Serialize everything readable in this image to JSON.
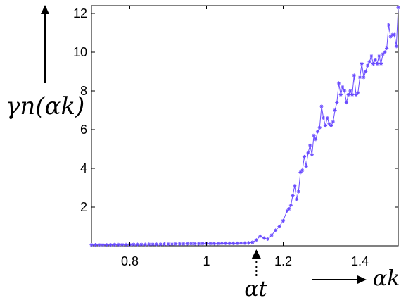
{
  "chart_data": {
    "type": "line",
    "title": "",
    "xlabel": "αk",
    "ylabel": "γn(αk)",
    "xlim": [
      0.7,
      1.5
    ],
    "ylim": [
      0,
      12.4
    ],
    "grid": false,
    "legend": "none",
    "x_ticks": [
      0.8,
      1,
      1.2,
      1.4
    ],
    "x_tick_labels": [
      "0.8",
      "1",
      "1.2",
      "1.4"
    ],
    "y_ticks": [
      2,
      4,
      6,
      8,
      10,
      12
    ],
    "y_tick_labels": [
      "2",
      "4",
      "6",
      "8",
      "10",
      "12"
    ],
    "annotation": {
      "label": "αt",
      "x": 1.13
    },
    "series": [
      {
        "color": "#6a4cff",
        "marker": "star",
        "x": [
          0.7,
          0.71,
          0.72,
          0.73,
          0.74,
          0.75,
          0.76,
          0.77,
          0.78,
          0.79,
          0.8,
          0.81,
          0.82,
          0.83,
          0.84,
          0.85,
          0.86,
          0.87,
          0.88,
          0.89,
          0.9,
          0.91,
          0.92,
          0.93,
          0.94,
          0.95,
          0.96,
          0.97,
          0.98,
          0.99,
          1.0,
          1.01,
          1.02,
          1.03,
          1.04,
          1.05,
          1.06,
          1.07,
          1.08,
          1.09,
          1.1,
          1.11,
          1.12,
          1.13,
          1.14,
          1.15,
          1.16,
          1.17,
          1.18,
          1.19,
          1.2,
          1.21,
          1.215,
          1.22,
          1.225,
          1.23,
          1.235,
          1.24,
          1.245,
          1.25,
          1.255,
          1.26,
          1.265,
          1.27,
          1.275,
          1.28,
          1.285,
          1.29,
          1.295,
          1.3,
          1.305,
          1.31,
          1.315,
          1.32,
          1.325,
          1.33,
          1.335,
          1.34,
          1.345,
          1.35,
          1.355,
          1.36,
          1.365,
          1.37,
          1.375,
          1.38,
          1.385,
          1.39,
          1.395,
          1.4,
          1.405,
          1.41,
          1.415,
          1.42,
          1.425,
          1.43,
          1.435,
          1.44,
          1.445,
          1.45,
          1.455,
          1.46,
          1.465,
          1.47,
          1.475,
          1.48,
          1.485,
          1.49,
          1.495,
          1.5
        ],
        "y": [
          0.05,
          0.05,
          0.05,
          0.05,
          0.05,
          0.05,
          0.06,
          0.06,
          0.06,
          0.06,
          0.06,
          0.07,
          0.07,
          0.07,
          0.07,
          0.08,
          0.08,
          0.08,
          0.08,
          0.09,
          0.09,
          0.09,
          0.1,
          0.1,
          0.1,
          0.11,
          0.11,
          0.11,
          0.11,
          0.12,
          0.12,
          0.12,
          0.12,
          0.12,
          0.13,
          0.13,
          0.13,
          0.13,
          0.13,
          0.14,
          0.14,
          0.15,
          0.18,
          0.3,
          0.5,
          0.4,
          0.35,
          0.55,
          0.8,
          1.0,
          1.3,
          1.8,
          1.9,
          2.1,
          2.6,
          3.1,
          2.4,
          2.8,
          3.8,
          3.9,
          4.6,
          4.1,
          4.8,
          5.2,
          4.7,
          5.7,
          5.5,
          5.9,
          6.1,
          7.2,
          6.6,
          6.2,
          6.6,
          6.3,
          6.2,
          6.4,
          7.0,
          7.4,
          8.4,
          7.8,
          8.2,
          8.0,
          7.4,
          7.8,
          8.0,
          7.8,
          8.8,
          7.8,
          7.9,
          8.7,
          9.4,
          8.7,
          9.0,
          9.3,
          9.5,
          9.8,
          9.4,
          9.6,
          9.4,
          9.8,
          9.4,
          9.9,
          10.0,
          10.2,
          11.4,
          10.8,
          10.9,
          10.9,
          10.3,
          12.3
        ]
      }
    ]
  }
}
